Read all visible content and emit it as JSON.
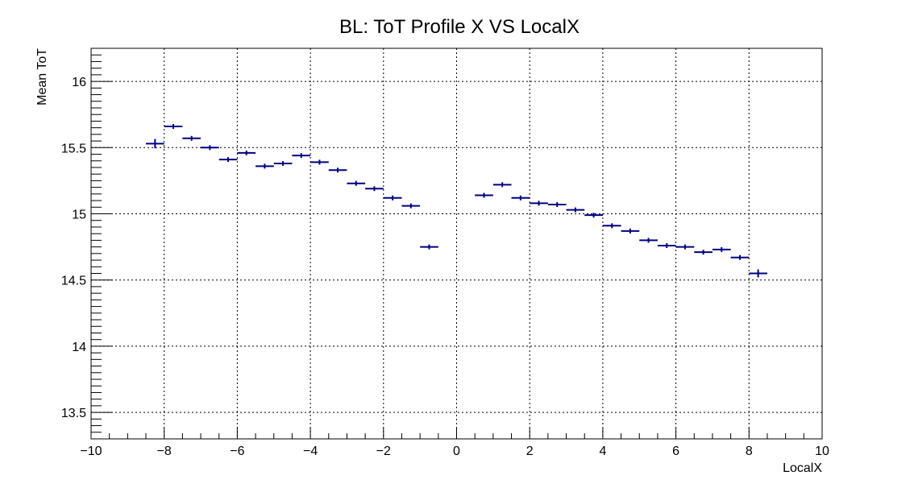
{
  "chart_data": {
    "type": "scatter",
    "title": "BL: ToT Profile X VS LocalX",
    "xlabel": "LocalX",
    "ylabel": "Mean ToT",
    "xlim": [
      -10,
      10
    ],
    "ylim": [
      13.3,
      16.25
    ],
    "grid": true,
    "legend": "none",
    "marker_color": "#000080",
    "x_ticks": [
      -10,
      -8,
      -6,
      -4,
      -2,
      0,
      2,
      4,
      6,
      8,
      10
    ],
    "x_tick_labels": [
      "−10",
      "−8",
      "−6",
      "−4",
      "−2",
      "0",
      "2",
      "4",
      "6",
      "8",
      "10"
    ],
    "y_ticks": [
      13.5,
      14,
      14.5,
      15,
      15.5,
      16
    ],
    "y_tick_labels": [
      "13.5",
      "14",
      "14.5",
      "15",
      "15.5",
      "16"
    ],
    "bin_half_width": 0.25,
    "series": [
      {
        "x": [
          -8.25,
          -7.75,
          -7.25,
          -6.75,
          -6.25,
          -5.75,
          -5.25,
          -4.75,
          -4.25,
          -3.75,
          -3.25,
          -2.75,
          -2.25,
          -1.75,
          -1.25,
          -0.75,
          0.75,
          1.25,
          1.75,
          2.25,
          2.75,
          3.25,
          3.75,
          4.25,
          4.75,
          5.25,
          5.75,
          6.25,
          6.75,
          7.25,
          7.75,
          8.25
        ],
        "y": [
          15.53,
          15.66,
          15.57,
          15.5,
          15.41,
          15.46,
          15.36,
          15.38,
          15.44,
          15.39,
          15.33,
          15.23,
          15.19,
          15.12,
          15.06,
          14.75,
          15.14,
          15.22,
          15.12,
          15.08,
          15.07,
          15.03,
          14.99,
          14.91,
          14.87,
          14.8,
          14.76,
          14.75,
          14.71,
          14.73,
          14.67,
          14.55
        ],
        "yerr": [
          0.035,
          0.012,
          0.01,
          0.01,
          0.01,
          0.01,
          0.01,
          0.01,
          0.01,
          0.01,
          0.01,
          0.01,
          0.01,
          0.01,
          0.01,
          0.012,
          0.01,
          0.012,
          0.01,
          0.01,
          0.01,
          0.01,
          0.01,
          0.01,
          0.012,
          0.01,
          0.01,
          0.012,
          0.01,
          0.012,
          0.01,
          0.03
        ]
      }
    ]
  }
}
